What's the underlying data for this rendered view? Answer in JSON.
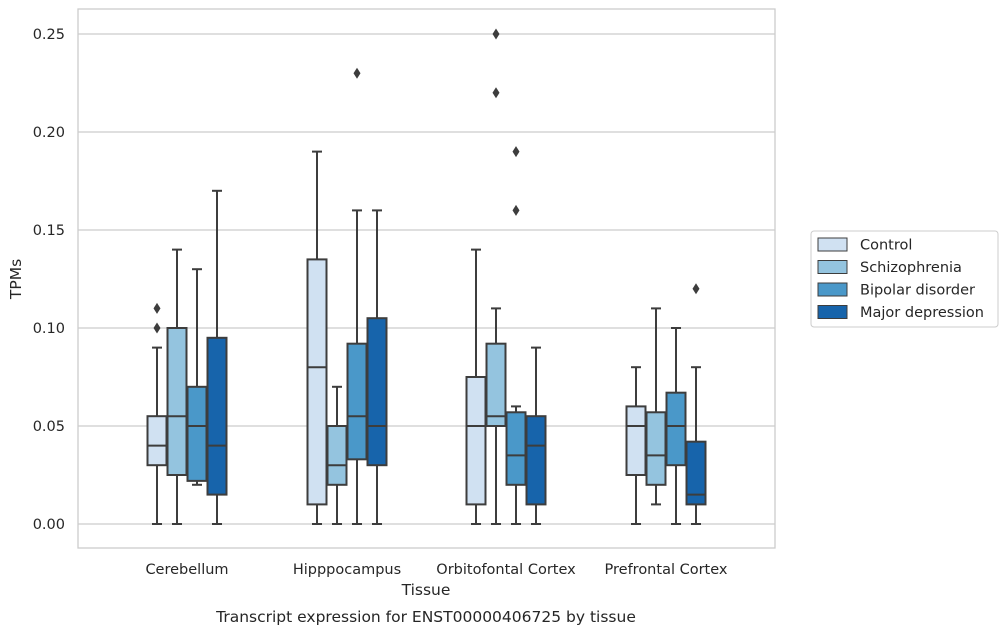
{
  "chart_data": {
    "type": "box",
    "caption": "Transcript expression for ENST00000406725 by tissue",
    "xlabel": "Tissue",
    "ylabel": "TPMs",
    "ylim": [
      -0.012,
      0.263
    ],
    "yticks": [
      0.0,
      0.05,
      0.1,
      0.15,
      0.2,
      0.25
    ],
    "ytick_labels": [
      "0.00",
      "0.05",
      "0.10",
      "0.15",
      "0.20",
      "0.25"
    ],
    "grid": "horizontal",
    "legend_position": "right",
    "categories": [
      "Cerebellum",
      "Hipppocampus",
      "Orbitofontal Cortex",
      "Prefrontal Cortex"
    ],
    "series": [
      {
        "name": "Control",
        "color": "#d0e1f2",
        "boxes": [
          {
            "whislo": 0.0,
            "q1": 0.03,
            "med": 0.04,
            "q3": 0.055,
            "whishi": 0.09,
            "fliers": [
              0.1,
              0.11
            ]
          },
          {
            "whislo": 0.0,
            "q1": 0.01,
            "med": 0.08,
            "q3": 0.135,
            "whishi": 0.19,
            "fliers": []
          },
          {
            "whislo": 0.0,
            "q1": 0.01,
            "med": 0.05,
            "q3": 0.075,
            "whishi": 0.14,
            "fliers": []
          },
          {
            "whislo": 0.0,
            "q1": 0.025,
            "med": 0.05,
            "q3": 0.06,
            "whishi": 0.08,
            "fliers": []
          }
        ]
      },
      {
        "name": "Schizophrenia",
        "color": "#94c4df",
        "boxes": [
          {
            "whislo": 0.0,
            "q1": 0.025,
            "med": 0.055,
            "q3": 0.1,
            "whishi": 0.14,
            "fliers": []
          },
          {
            "whislo": 0.0,
            "q1": 0.02,
            "med": 0.03,
            "q3": 0.05,
            "whishi": 0.07,
            "fliers": []
          },
          {
            "whislo": 0.0,
            "q1": 0.05,
            "med": 0.055,
            "q3": 0.092,
            "whishi": 0.11,
            "fliers": [
              0.22,
              0.25
            ]
          },
          {
            "whislo": 0.01,
            "q1": 0.02,
            "med": 0.035,
            "q3": 0.057,
            "whishi": 0.11,
            "fliers": []
          }
        ]
      },
      {
        "name": "Bipolar disorder",
        "color": "#4a98c9",
        "boxes": [
          {
            "whislo": 0.02,
            "q1": 0.022,
            "med": 0.05,
            "q3": 0.07,
            "whishi": 0.13,
            "fliers": []
          },
          {
            "whislo": 0.0,
            "q1": 0.033,
            "med": 0.055,
            "q3": 0.092,
            "whishi": 0.16,
            "fliers": [
              0.23
            ]
          },
          {
            "whislo": 0.0,
            "q1": 0.02,
            "med": 0.035,
            "q3": 0.057,
            "whishi": 0.06,
            "fliers": [
              0.16,
              0.19
            ]
          },
          {
            "whislo": 0.0,
            "q1": 0.03,
            "med": 0.05,
            "q3": 0.067,
            "whishi": 0.1,
            "fliers": []
          }
        ]
      },
      {
        "name": "Major depression",
        "color": "#1764ab",
        "boxes": [
          {
            "whislo": 0.0,
            "q1": 0.015,
            "med": 0.04,
            "q3": 0.095,
            "whishi": 0.17,
            "fliers": []
          },
          {
            "whislo": 0.0,
            "q1": 0.03,
            "med": 0.05,
            "q3": 0.105,
            "whishi": 0.16,
            "fliers": []
          },
          {
            "whislo": 0.0,
            "q1": 0.01,
            "med": 0.04,
            "q3": 0.055,
            "whishi": 0.09,
            "fliers": []
          },
          {
            "whislo": 0.0,
            "q1": 0.01,
            "med": 0.015,
            "q3": 0.042,
            "whishi": 0.08,
            "fliers": [
              0.12
            ]
          }
        ]
      }
    ]
  },
  "colors": {
    "grid": "#cccccc",
    "frame": "#cccccc",
    "box_edge": "#3d3d3d",
    "background": "#ffffff"
  }
}
